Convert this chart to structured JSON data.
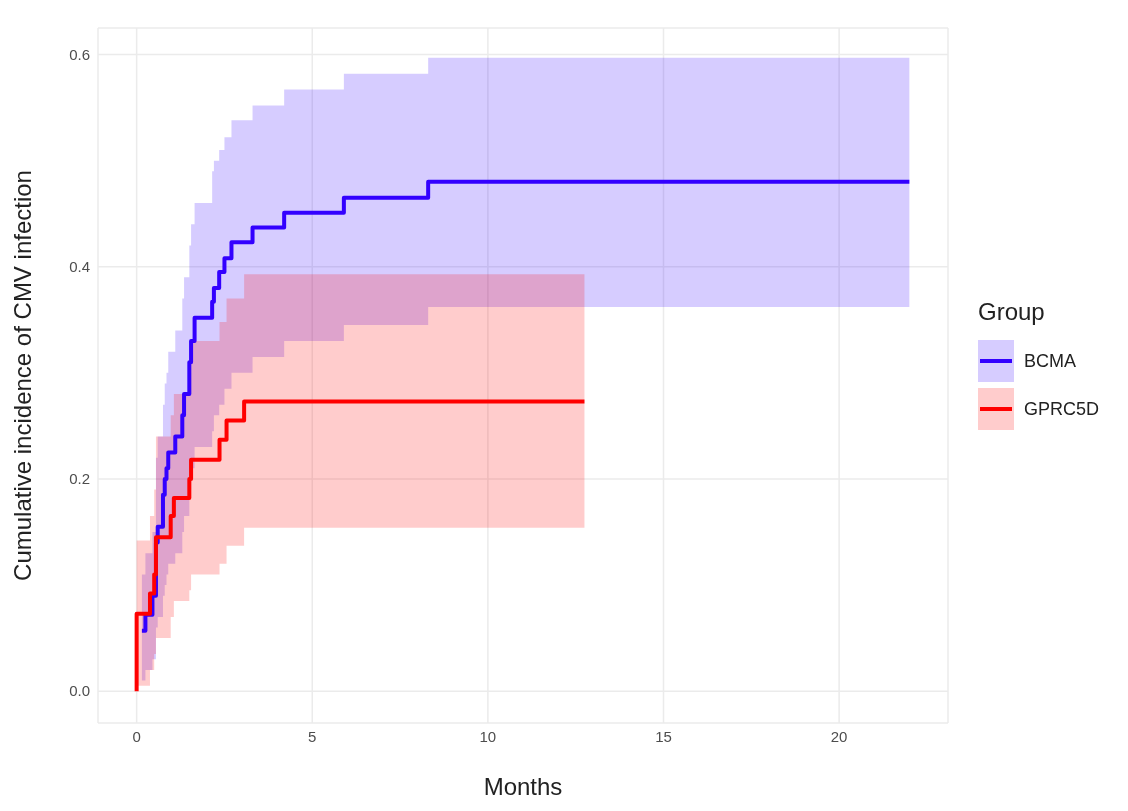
{
  "chart_data": {
    "type": "step",
    "xlabel": "Months",
    "ylabel": "Cumulative incidence of CMV infection",
    "legend_title": "Group",
    "legend": "right",
    "grid": true,
    "line_style": "solid",
    "marker": "none",
    "xlim": [
      -1.1,
      23.1
    ],
    "xticks": [
      0,
      5,
      10,
      15,
      20
    ],
    "ylim": [
      -0.03,
      0.625
    ],
    "yticks": [
      {
        "value": 0,
        "label": "0.0"
      },
      {
        "value": 0.2,
        "label": "0.2"
      },
      {
        "value": 0.4,
        "label": "0.4"
      },
      {
        "value": 0.6,
        "label": "0.6"
      }
    ],
    "series": [
      {
        "name": "BCMA",
        "color": "#3300ff",
        "x": [
          0.15,
          0.25,
          0.45,
          0.55,
          0.6,
          0.75,
          0.8,
          0.85,
          0.9,
          1.1,
          1.3,
          1.35,
          1.5,
          1.55,
          1.65,
          2.15,
          2.2,
          2.35,
          2.5,
          2.7,
          3.3,
          4.2,
          5.9,
          8.3,
          22
        ],
        "values": [
          0.057,
          0.072,
          0.09,
          0.14,
          0.155,
          0.185,
          0.2,
          0.21,
          0.225,
          0.24,
          0.26,
          0.28,
          0.31,
          0.33,
          0.352,
          0.367,
          0.38,
          0.395,
          0.408,
          0.423,
          0.437,
          0.451,
          0.465,
          0.48,
          0.48
        ],
        "lower": [
          0.01,
          0.02,
          0.03,
          0.06,
          0.07,
          0.09,
          0.1,
          0.11,
          0.12,
          0.13,
          0.15,
          0.165,
          0.19,
          0.21,
          0.23,
          0.245,
          0.26,
          0.27,
          0.285,
          0.3,
          0.315,
          0.33,
          0.345,
          0.362,
          0.362
        ],
        "upper": [
          0.11,
          0.13,
          0.15,
          0.22,
          0.24,
          0.27,
          0.29,
          0.3,
          0.32,
          0.34,
          0.37,
          0.39,
          0.42,
          0.44,
          0.46,
          0.49,
          0.5,
          0.51,
          0.522,
          0.538,
          0.552,
          0.567,
          0.582,
          0.597,
          0.597
        ]
      },
      {
        "name": "GPRC5D",
        "color": "#ff0000",
        "x": [
          0,
          0,
          0.38,
          0.5,
          0.55,
          0.97,
          1.06,
          1.5,
          1.55,
          2.36,
          2.56,
          3.06,
          12.75
        ],
        "values": [
          0,
          0.073,
          0.092,
          0.11,
          0.145,
          0.165,
          0.182,
          0.2,
          0.218,
          0.237,
          0.255,
          0.273,
          0.273
        ],
        "lower": [
          0,
          0.005,
          0.02,
          0.035,
          0.05,
          0.07,
          0.085,
          0.095,
          0.11,
          0.12,
          0.137,
          0.154,
          0.154
        ],
        "upper": [
          0,
          0.142,
          0.165,
          0.19,
          0.24,
          0.26,
          0.28,
          0.3,
          0.33,
          0.348,
          0.37,
          0.393,
          0.393
        ]
      }
    ]
  }
}
